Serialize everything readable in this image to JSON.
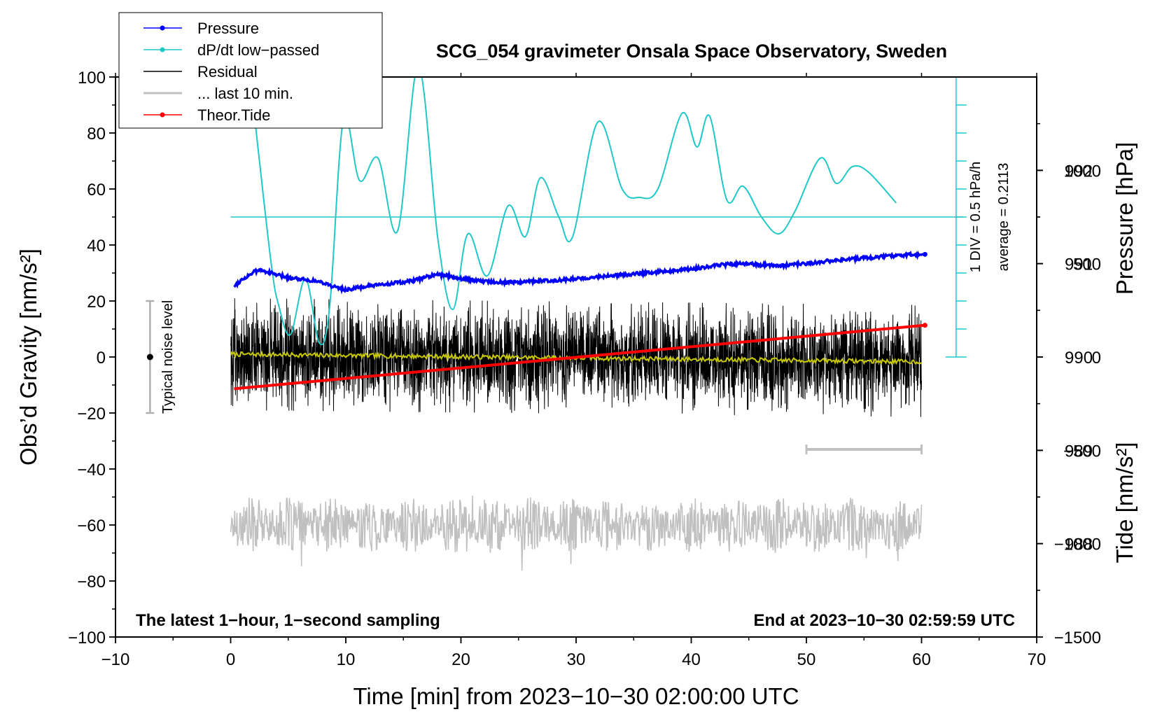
{
  "chart_data": {
    "type": "line",
    "title": "SCG_054 gravimeter Onsala Space Observatory, Sweden",
    "xlabel": "Time [min] from 2023−10−30 02:00:00 UTC",
    "ylabel_left": "Obs’d Gravity [nm/s²]",
    "ylabel_right_pressure": "Pressure [hPa]",
    "ylabel_right_tide": "Tide [nm/s²]",
    "xlim": [
      -10,
      70
    ],
    "ylim": [
      -100,
      100
    ],
    "pressure_ylim": [
      987,
      993
    ],
    "tide_ylim": [
      -1500,
      1500
    ],
    "x_ticks": [
      "−10",
      "0",
      "10",
      "20",
      "30",
      "40",
      "50",
      "60",
      "70"
    ],
    "x_tick_values": [
      -10,
      0,
      10,
      20,
      30,
      40,
      50,
      60,
      70
    ],
    "y_ticks": [
      "100",
      "80",
      "60",
      "40",
      "20",
      "0",
      "−20",
      "−40",
      "−60",
      "−80",
      "−100"
    ],
    "y_tick_values": [
      100,
      80,
      60,
      40,
      20,
      0,
      -20,
      -40,
      -60,
      -80,
      -100
    ],
    "pressure_ticks": [
      "992",
      "991",
      "990",
      "989",
      "988"
    ],
    "pressure_tick_values": [
      992,
      991,
      990,
      989,
      988
    ],
    "tide_ticks": [
      "1000",
      "500",
      "0",
      "−500",
      "−1000",
      "−1500"
    ],
    "tide_tick_values": [
      1000,
      500,
      0,
      -500,
      -1000,
      -1500
    ],
    "legend": [
      {
        "label": "Pressure",
        "color": "#0000ff",
        "marker": true
      },
      {
        "label": "dP/dt low−passed",
        "color": "#20c8c8",
        "marker": true
      },
      {
        "label": "Residual",
        "color": "#000000",
        "marker": false
      },
      {
        "label": "... last 10 min.",
        "color": "#c0c0c0",
        "marker": false
      },
      {
        "label": "Theor.Tide",
        "color": "#ff0000",
        "marker": true
      }
    ],
    "colors": {
      "pressure": "#0000ff",
      "dpdt": "#20c8c8",
      "residual": "#000000",
      "residual_smooth": "#c8c800",
      "last10": "#c0c0c0",
      "tide": "#ff0000",
      "noise_bar": "#b0b0b0"
    },
    "series": [
      {
        "name": "Pressure",
        "axis": "pressure",
        "x": [
          0.3,
          1,
          2,
          2.5,
          3,
          4,
          5,
          6,
          7,
          8,
          9,
          10,
          11,
          12,
          13,
          14,
          15,
          16,
          17,
          18,
          19,
          20,
          22,
          24,
          26,
          28,
          30,
          32,
          34,
          36,
          38,
          40,
          42,
          44,
          46,
          48,
          50,
          52,
          54,
          56,
          58,
          60.3
        ],
        "values": [
          990.76,
          990.83,
          990.91,
          990.93,
          990.92,
          990.88,
          990.85,
          990.84,
          990.82,
          990.8,
          990.75,
          990.72,
          990.74,
          990.76,
          990.77,
          990.79,
          990.8,
          990.82,
          990.86,
          990.88,
          990.87,
          990.84,
          990.81,
          990.8,
          990.81,
          990.82,
          990.84,
          990.86,
          990.88,
          990.9,
          990.92,
          990.94,
          990.98,
          991.0,
          990.99,
          990.98,
          991.0,
          991.03,
          991.05,
          991.07,
          991.09,
          991.1
        ]
      },
      {
        "name": "dP/dt low−passed",
        "axis": "left",
        "x": [
          2.1,
          3.5,
          4.2,
          5.2,
          6.5,
          7.7,
          8.6,
          9.8,
          11.2,
          12.8,
          14.5,
          16.3,
          18.0,
          19.3,
          20.6,
          22.3,
          24.1,
          25.6,
          26.9,
          28.5,
          29.7,
          31.9,
          34.0,
          35.5,
          37.1,
          39.2,
          40.5,
          41.6,
          43.1,
          44.5,
          46.1,
          47.6,
          49.0,
          51.2,
          52.6,
          54.0,
          55.4,
          57.8
        ],
        "values": [
          85,
          34,
          18,
          8,
          28,
          5,
          18,
          85,
          63,
          71,
          45,
          104,
          42,
          17,
          44,
          29,
          54,
          43,
          64,
          50,
          43,
          84,
          60,
          57,
          60,
          87,
          75,
          86,
          56,
          61,
          50,
          44,
          52,
          71,
          62,
          68,
          66,
          55
        ]
      },
      {
        "name": "Residual",
        "axis": "left",
        "x_range": [
          0,
          60
        ],
        "amplitude_typical": 8,
        "amplitude_peak": 20
      },
      {
        "name": "... last 10 min.",
        "axis": "left",
        "x_range": [
          0,
          60
        ],
        "center": -60,
        "amplitude_typical": 10,
        "amplitude_peak": 22
      },
      {
        "name": "Theor.Tide",
        "axis": "tide",
        "x": [
          0.3,
          60.3
        ],
        "values": [
          -170,
          170
        ]
      }
    ],
    "dpdt_reference": {
      "baseline_value": 50,
      "axis_x": 63,
      "y_range": [
        0,
        100
      ],
      "division_count": 10,
      "label_division": "1 DIV = 0.5 hPa/h",
      "label_average": "average = 0.2113"
    },
    "noise_bar": {
      "x": -7,
      "y_low": -20,
      "y_high": 20,
      "label": "Typical noise level"
    },
    "last10_bar": {
      "x_start": 50,
      "x_end": 60,
      "y": -33
    },
    "footer_left": "The latest 1−hour, 1−second sampling",
    "footer_right": "End at 2023−10−30 02:59:59 UTC"
  }
}
